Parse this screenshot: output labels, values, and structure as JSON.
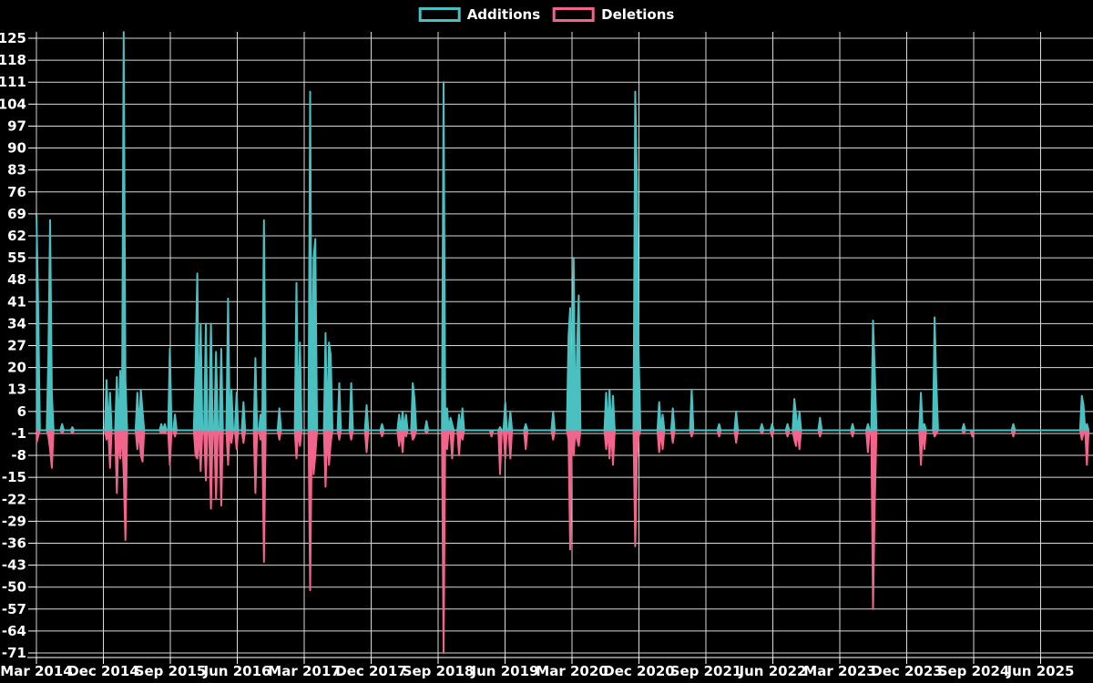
{
  "legend": {
    "additions_label": "Additions",
    "deletions_label": "Deletions"
  },
  "colors": {
    "additions": "#4bc0c0",
    "deletions": "#f2648c",
    "grid": "#ffffff",
    "background": "#000000",
    "text": "#ffffff"
  },
  "chart_data": {
    "type": "area",
    "title": "",
    "xlabel": "",
    "ylabel": "",
    "legend_position": "top-center",
    "grid": true,
    "x_unit": "weeks",
    "weeks_total": 616,
    "weeks_per_tick": 39.13,
    "ylim": [
      -71,
      127
    ],
    "y_ticks": [
      125,
      118,
      111,
      104,
      97,
      90,
      83,
      76,
      69,
      62,
      55,
      48,
      41,
      34,
      27,
      20,
      13,
      6,
      -1,
      -8,
      -15,
      -22,
      -29,
      -36,
      -43,
      -50,
      -57,
      -64,
      -71
    ],
    "x_tick_labels": [
      "Mar 2014",
      "Dec 2014",
      "Sep 2015",
      "Jun 2016",
      "Mar 2017",
      "Dec 2017",
      "Sep 2018",
      "Jun 2019",
      "Mar 2020",
      "Dec 2020",
      "Sep 2021",
      "Jun 2022",
      "Mar 2023",
      "Dec 2023",
      "Sep 2024",
      "Jun 2025"
    ],
    "series_names": [
      "Additions",
      "Deletions"
    ],
    "points_format": [
      "week_index",
      "additions",
      "deletions"
    ],
    "points": [
      [
        0,
        69,
        -4
      ],
      [
        1,
        40,
        -2
      ],
      [
        7,
        23,
        -2
      ],
      [
        8,
        67,
        -6
      ],
      [
        9,
        12,
        -12
      ],
      [
        15,
        2,
        -1
      ],
      [
        21,
        1,
        -1
      ],
      [
        41,
        16,
        -3
      ],
      [
        43,
        12,
        -12
      ],
      [
        47,
        17,
        -20
      ],
      [
        49,
        19,
        -9
      ],
      [
        51,
        127,
        -14
      ],
      [
        52,
        16,
        -35
      ],
      [
        59,
        12,
        -6
      ],
      [
        61,
        13,
        -8
      ],
      [
        62,
        6,
        -10
      ],
      [
        73,
        2,
        -1
      ],
      [
        75,
        2,
        -1
      ],
      [
        78,
        26,
        -11
      ],
      [
        81,
        5,
        -2
      ],
      [
        93,
        20,
        -8
      ],
      [
        94,
        50,
        -9
      ],
      [
        96,
        34,
        -13
      ],
      [
        99,
        34,
        -16
      ],
      [
        102,
        34,
        -25
      ],
      [
        105,
        25,
        -22
      ],
      [
        108,
        26,
        -24
      ],
      [
        112,
        42,
        -11
      ],
      [
        114,
        13,
        -4
      ],
      [
        117,
        12,
        -6
      ],
      [
        121,
        9,
        -4
      ],
      [
        128,
        23,
        -20
      ],
      [
        131,
        5,
        -3
      ],
      [
        133,
        67,
        -42
      ],
      [
        142,
        7,
        -3
      ],
      [
        152,
        47,
        -9
      ],
      [
        154,
        28,
        -5
      ],
      [
        160,
        108,
        -51
      ],
      [
        162,
        55,
        -14
      ],
      [
        163,
        61,
        -8
      ],
      [
        169,
        31,
        -18
      ],
      [
        171,
        28,
        -11
      ],
      [
        172,
        24,
        -4
      ],
      [
        177,
        15,
        -3
      ],
      [
        184,
        15,
        -3
      ],
      [
        193,
        8,
        -7
      ],
      [
        202,
        2,
        -2
      ],
      [
        212,
        5,
        -5
      ],
      [
        214,
        6,
        -7
      ],
      [
        216,
        5,
        -2
      ],
      [
        220,
        15,
        -3
      ],
      [
        221,
        10,
        -2
      ],
      [
        228,
        3,
        -1
      ],
      [
        238,
        111,
        -71
      ],
      [
        240,
        7,
        -6
      ],
      [
        242,
        4,
        -1
      ],
      [
        243,
        2,
        -9
      ],
      [
        247,
        5,
        -8
      ],
      [
        249,
        7,
        -3
      ],
      [
        266,
        0,
        -2
      ],
      [
        271,
        1,
        -14
      ],
      [
        274,
        9,
        -9
      ],
      [
        277,
        6,
        -9
      ],
      [
        286,
        2,
        -6
      ],
      [
        302,
        6,
        -3
      ],
      [
        311,
        30,
        -3
      ],
      [
        312,
        39,
        -38
      ],
      [
        314,
        55,
        -8
      ],
      [
        316,
        27,
        -3
      ],
      [
        317,
        43,
        -5
      ],
      [
        333,
        12,
        -6
      ],
      [
        335,
        13,
        -9
      ],
      [
        337,
        11,
        -11
      ],
      [
        350,
        108,
        -37
      ],
      [
        351,
        80,
        -9
      ],
      [
        352,
        24,
        -2
      ],
      [
        364,
        9,
        -7
      ],
      [
        366,
        5,
        -6
      ],
      [
        372,
        7,
        -4
      ],
      [
        383,
        13,
        -2
      ],
      [
        399,
        2,
        -2
      ],
      [
        409,
        6,
        -4
      ],
      [
        424,
        2,
        -1
      ],
      [
        430,
        2,
        -2
      ],
      [
        439,
        2,
        -2
      ],
      [
        443,
        10,
        -3
      ],
      [
        444,
        5,
        -5
      ],
      [
        446,
        6,
        -6
      ],
      [
        458,
        4,
        -2
      ],
      [
        477,
        2,
        -2
      ],
      [
        486,
        2,
        -7
      ],
      [
        489,
        35,
        -57
      ],
      [
        490,
        19,
        -23
      ],
      [
        517,
        12,
        -11
      ],
      [
        519,
        2,
        -6
      ],
      [
        525,
        36,
        -2
      ],
      [
        526,
        15,
        -1
      ],
      [
        542,
        2,
        -1
      ],
      [
        547,
        0,
        -2
      ],
      [
        571,
        2,
        -2
      ],
      [
        611,
        11,
        -3
      ],
      [
        612,
        8,
        -1
      ],
      [
        614,
        2,
        -11
      ]
    ]
  }
}
